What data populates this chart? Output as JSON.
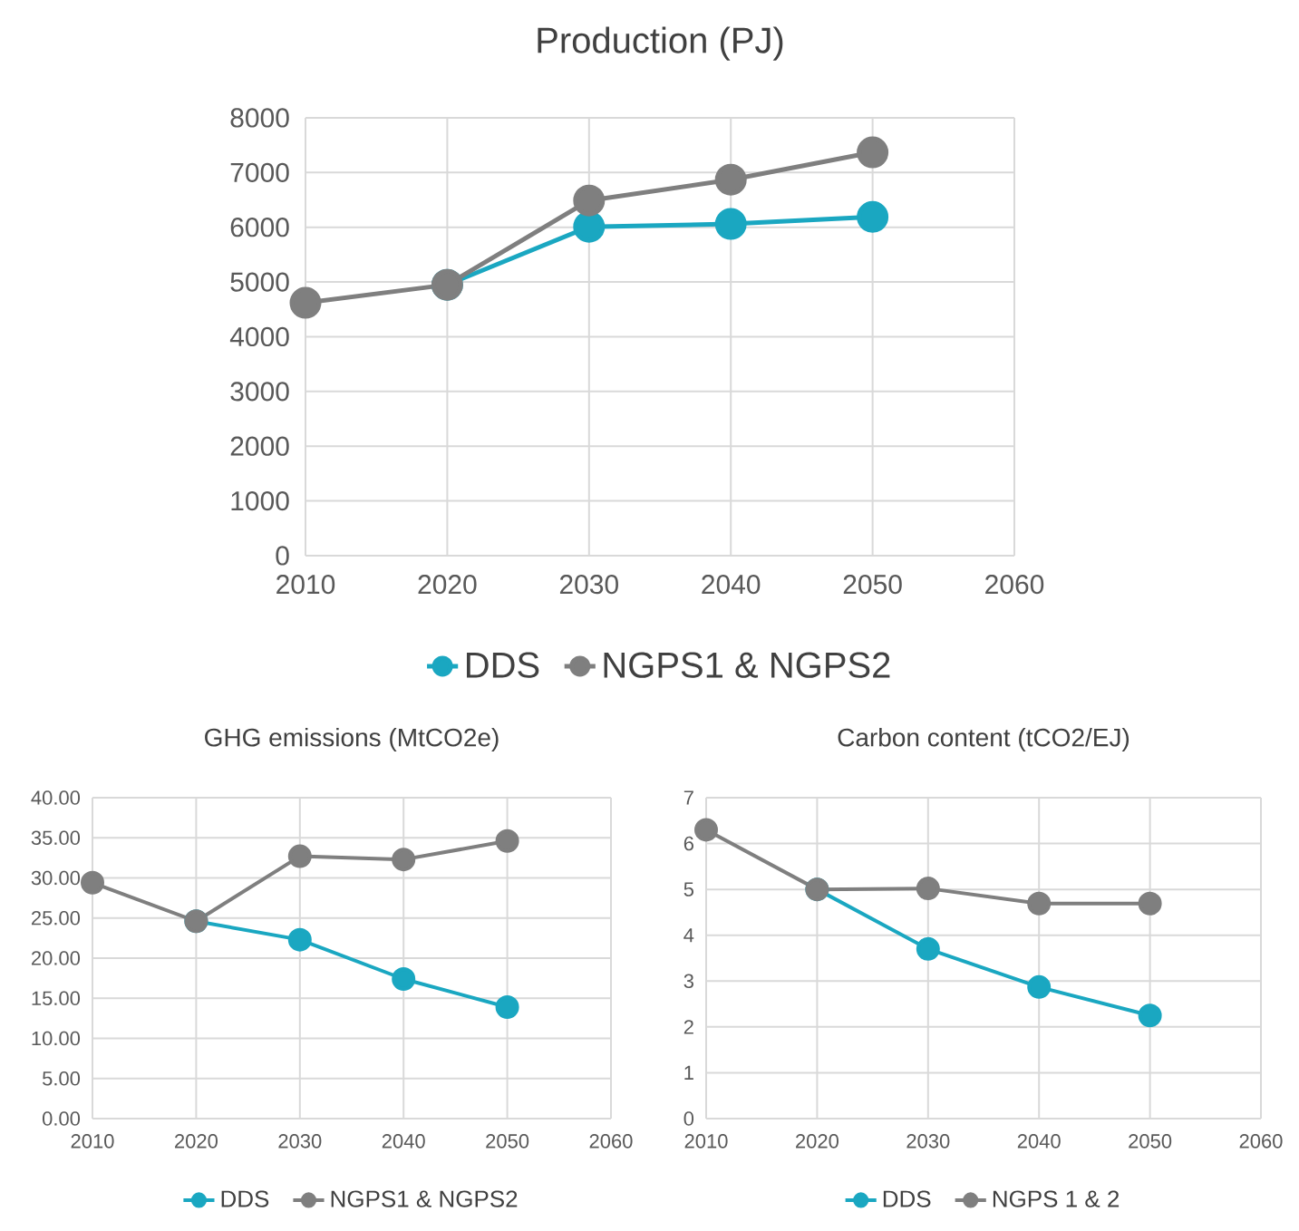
{
  "chart_data": [
    {
      "type": "line",
      "title": "Production (PJ)",
      "x": [
        2010,
        2020,
        2030,
        2040,
        2050
      ],
      "xlim": [
        2010,
        2060
      ],
      "xticks": [
        2010,
        2020,
        2030,
        2040,
        2050,
        2060
      ],
      "ylim": [
        0,
        8000
      ],
      "yticks": [
        0,
        1000,
        2000,
        3000,
        4000,
        5000,
        6000,
        7000,
        8000
      ],
      "grid": true,
      "legend": "bottom",
      "marker": "circle",
      "line_style": "solid",
      "series": [
        {
          "name": "DDS",
          "color": "#1aa7c1",
          "values": [
            null,
            4950,
            6010,
            6060,
            6190
          ]
        },
        {
          "name": "NGPS1 & NGPS2",
          "color": "#7f7f7f",
          "values": [
            4620,
            4950,
            6490,
            6870,
            7370
          ]
        }
      ]
    },
    {
      "type": "line",
      "title": "GHG emissions (MtCO2e)",
      "x": [
        2010,
        2020,
        2030,
        2040,
        2050
      ],
      "xlim": [
        2010,
        2060
      ],
      "xticks": [
        2010,
        2020,
        2030,
        2040,
        2050,
        2060
      ],
      "ylim": [
        0,
        40
      ],
      "yticks": [
        {
          "value": 0,
          "label": "0.00"
        },
        {
          "value": 5,
          "label": "5.00"
        },
        {
          "value": 10,
          "label": "10.00"
        },
        {
          "value": 15,
          "label": "15.00"
        },
        {
          "value": 20,
          "label": "20.00"
        },
        {
          "value": 25,
          "label": "25.00"
        },
        {
          "value": 30,
          "label": "30.00"
        },
        {
          "value": 35,
          "label": "35.00"
        },
        {
          "value": 40,
          "label": "40.00"
        }
      ],
      "grid": true,
      "legend": "bottom",
      "marker": "circle",
      "line_style": "solid",
      "series": [
        {
          "name": "DDS",
          "color": "#1aa7c1",
          "values": [
            null,
            24.6,
            22.3,
            17.4,
            13.9
          ]
        },
        {
          "name": "NGPS1 & NGPS2",
          "color": "#7f7f7f",
          "values": [
            29.4,
            24.6,
            32.7,
            32.3,
            34.6
          ]
        }
      ]
    },
    {
      "type": "line",
      "title": "Carbon content (tCO2/EJ)",
      "x": [
        2010,
        2020,
        2030,
        2040,
        2050
      ],
      "xlim": [
        2010,
        2060
      ],
      "xticks": [
        2010,
        2020,
        2030,
        2040,
        2050,
        2060
      ],
      "ylim": [
        0,
        7
      ],
      "yticks": [
        0,
        1,
        2,
        3,
        4,
        5,
        6,
        7
      ],
      "grid": true,
      "legend": "bottom",
      "marker": "circle",
      "line_style": "solid",
      "series": [
        {
          "name": "DDS",
          "color": "#1aa7c1",
          "values": [
            null,
            5.0,
            3.7,
            2.87,
            2.25
          ]
        },
        {
          "name": "NGPS 1 & 2",
          "color": "#7f7f7f",
          "values": [
            6.3,
            5.0,
            5.02,
            4.69,
            4.69
          ]
        }
      ]
    }
  ]
}
